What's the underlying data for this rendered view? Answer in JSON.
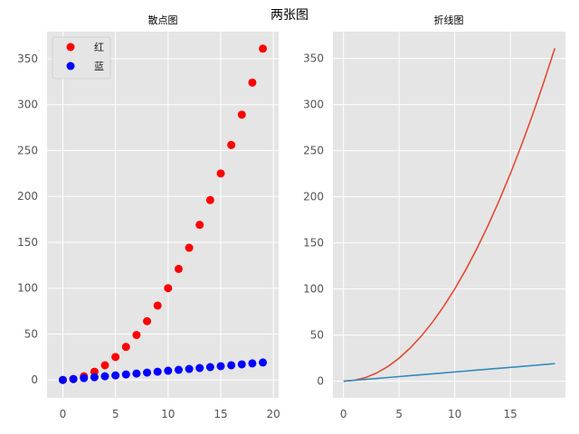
{
  "figure": {
    "title": "两张图"
  },
  "chart_data": [
    {
      "type": "scatter",
      "title": "散点图",
      "xlabel": "",
      "ylabel": "",
      "xlim": [
        -1.5,
        20.5
      ],
      "ylim": [
        -19.5,
        379.5
      ],
      "xticks": [
        0,
        5,
        10,
        15,
        20
      ],
      "yticks": [
        0,
        50,
        100,
        150,
        200,
        250,
        300,
        350
      ],
      "grid": true,
      "legend_position": "top-left",
      "x": [
        0,
        1,
        2,
        3,
        4,
        5,
        6,
        7,
        8,
        9,
        10,
        11,
        12,
        13,
        14,
        15,
        16,
        17,
        18,
        19
      ],
      "series": [
        {
          "name": "红",
          "color": "#ff0000",
          "values": [
            0,
            1,
            4,
            9,
            16,
            25,
            36,
            49,
            64,
            81,
            100,
            121,
            144,
            169,
            196,
            225,
            256,
            289,
            324,
            361
          ]
        },
        {
          "name": "蓝",
          "color": "#0000ff",
          "values": [
            0,
            1,
            2,
            3,
            4,
            5,
            6,
            7,
            8,
            9,
            10,
            11,
            12,
            13,
            14,
            15,
            16,
            17,
            18,
            19
          ]
        }
      ]
    },
    {
      "type": "line",
      "title": "折线图",
      "xlabel": "",
      "ylabel": "",
      "xlim": [
        -0.95,
        19.95
      ],
      "ylim": [
        -18.05,
        379.05
      ],
      "xticks": [
        0,
        5,
        10,
        15
      ],
      "yticks": [
        0,
        50,
        100,
        150,
        200,
        250,
        300,
        350
      ],
      "grid": true,
      "x": [
        0,
        1,
        2,
        3,
        4,
        5,
        6,
        7,
        8,
        9,
        10,
        11,
        12,
        13,
        14,
        15,
        16,
        17,
        18,
        19
      ],
      "series": [
        {
          "color": "#e24a33",
          "values": [
            0,
            1,
            4,
            9,
            16,
            25,
            36,
            49,
            64,
            81,
            100,
            121,
            144,
            169,
            196,
            225,
            256,
            289,
            324,
            361
          ]
        },
        {
          "color": "#348abd",
          "values": [
            0,
            1,
            2,
            3,
            4,
            5,
            6,
            7,
            8,
            9,
            10,
            11,
            12,
            13,
            14,
            15,
            16,
            17,
            18,
            19
          ]
        }
      ]
    }
  ]
}
